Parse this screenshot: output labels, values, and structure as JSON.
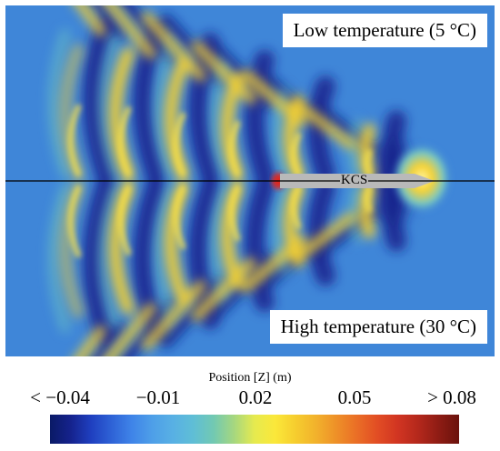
{
  "labels": {
    "low_temperature": "Low temperature (5 °C)",
    "high_temperature": "High temperature (30 °C)",
    "ship": "KCS"
  },
  "colorbar": {
    "title": "Position [Z] (m)",
    "ticks": [
      "< −0.04",
      "−0.01",
      "0.02",
      "0.05",
      "> 0.08"
    ],
    "min": -0.04,
    "max": 0.08
  },
  "colors": {
    "background_field": "#3f86d8",
    "trough": "#15228c",
    "crest": "#f6d130",
    "peak": "#e0261b"
  }
}
